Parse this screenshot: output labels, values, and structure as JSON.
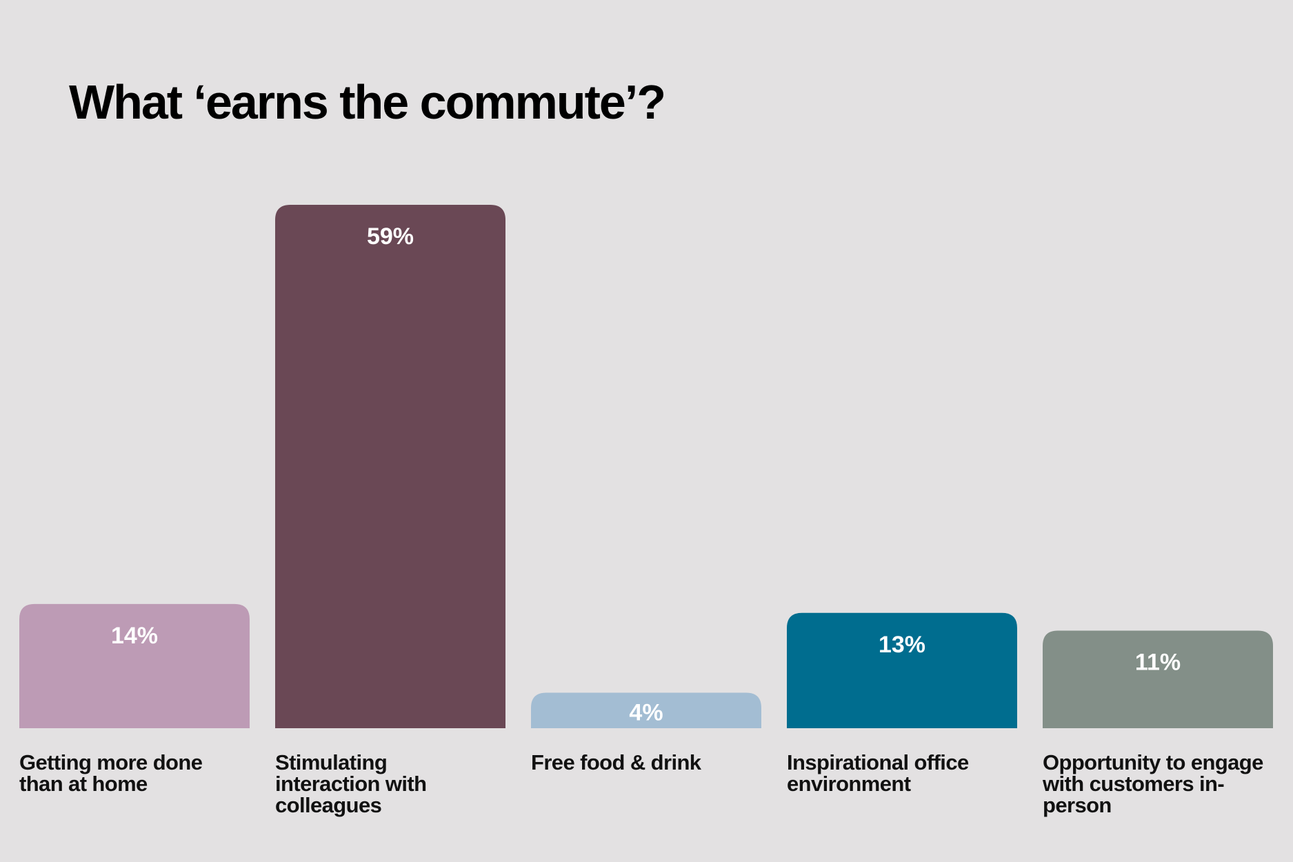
{
  "chart_data": {
    "type": "bar",
    "title": "What ‘earns the commute’?",
    "categories": [
      [
        "Getting more done",
        "than at home"
      ],
      [
        "Stimulating",
        "interaction with",
        "colleagues"
      ],
      [
        "Free food & drink"
      ],
      [
        "Inspirational office",
        "environment"
      ],
      [
        "Opportunity to engage",
        "with customers in-",
        "person"
      ]
    ],
    "values": [
      14,
      59,
      4,
      13,
      11
    ],
    "value_labels": [
      "14%",
      "59%",
      "4%",
      "13%",
      "11%"
    ],
    "colors": [
      "#bd9bb5",
      "#6a4855",
      "#a3bdd3",
      "#006d8f",
      "#838f88"
    ],
    "ylim": [
      0,
      59
    ],
    "grid": false,
    "legend": "none",
    "xlabel": "",
    "ylabel": ""
  }
}
